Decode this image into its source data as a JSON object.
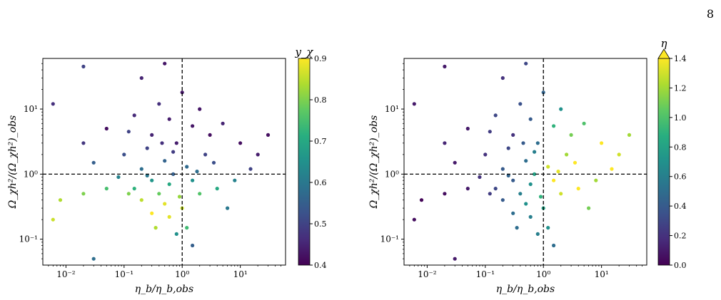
{
  "page_number": "8",
  "chart_data": [
    {
      "type": "scatter",
      "xlabel": "η_b/η_b,obs",
      "ylabel": "Ω_χh²/(Ω_χh²)_obs",
      "x_scale": "log",
      "y_scale": "log",
      "xlim": [
        0.004,
        60
      ],
      "ylim": [
        0.04,
        60
      ],
      "x_ticks": [
        {
          "value": 0.01,
          "label": "10⁻²"
        },
        {
          "value": 0.1,
          "label": "10⁻¹"
        },
        {
          "value": 1,
          "label": "10⁰"
        },
        {
          "value": 10,
          "label": "10¹"
        }
      ],
      "y_ticks": [
        {
          "value": 0.1,
          "label": "10⁻¹"
        },
        {
          "value": 1,
          "label": "10⁰"
        },
        {
          "value": 10,
          "label": "10¹"
        }
      ],
      "reference_lines": {
        "x": 1,
        "y": 1,
        "style": "dashed"
      },
      "colorbar": {
        "label": "y_χ",
        "min": 0.4,
        "max": 0.9,
        "ticks": [
          {
            "value": 0.4,
            "label": "0.4"
          },
          {
            "value": 0.5,
            "label": "0.5"
          },
          {
            "value": 0.6,
            "label": "0.6"
          },
          {
            "value": 0.7,
            "label": "0.7"
          },
          {
            "value": 0.8,
            "label": "0.8"
          },
          {
            "value": 0.9,
            "label": "0.9"
          }
        ],
        "colormap": "viridis",
        "extend_max": false
      },
      "points": [
        [
          0.05,
          5.0,
          0.42
        ],
        [
          0.3,
          4.0,
          0.45
        ],
        [
          0.8,
          3.0,
          0.44
        ],
        [
          1.5,
          5.5,
          0.43
        ],
        [
          3.0,
          4.0,
          0.42
        ],
        [
          0.15,
          8.0,
          0.46
        ],
        [
          0.6,
          7.0,
          0.44
        ],
        [
          2.0,
          10.0,
          0.43
        ],
        [
          5.0,
          6.0,
          0.45
        ],
        [
          0.02,
          3.0,
          0.48
        ],
        [
          0.4,
          12.0,
          0.47
        ],
        [
          1.0,
          18.0,
          0.43
        ],
        [
          0.25,
          2.5,
          0.5
        ],
        [
          0.1,
          2.0,
          0.52
        ],
        [
          0.7,
          2.2,
          0.49
        ],
        [
          2.5,
          2.0,
          0.5
        ],
        [
          0.03,
          1.5,
          0.55
        ],
        [
          0.5,
          1.6,
          0.56
        ],
        [
          0.2,
          1.2,
          0.58
        ],
        [
          1.2,
          1.3,
          0.57
        ],
        [
          0.08,
          0.9,
          0.62
        ],
        [
          0.3,
          0.8,
          0.66
        ],
        [
          0.6,
          0.7,
          0.7
        ],
        [
          1.5,
          0.8,
          0.65
        ],
        [
          0.15,
          0.6,
          0.72
        ],
        [
          0.4,
          0.5,
          0.78
        ],
        [
          0.9,
          0.45,
          0.82
        ],
        [
          0.2,
          0.4,
          0.85
        ],
        [
          0.5,
          0.35,
          0.88
        ],
        [
          1.0,
          0.3,
          0.86
        ],
        [
          0.3,
          0.25,
          0.9
        ],
        [
          0.6,
          0.22,
          0.88
        ],
        [
          0.12,
          0.5,
          0.8
        ],
        [
          0.05,
          0.6,
          0.75
        ],
        [
          0.02,
          0.5,
          0.8
        ],
        [
          0.008,
          0.4,
          0.84
        ],
        [
          2.0,
          0.5,
          0.76
        ],
        [
          4.0,
          0.6,
          0.7
        ],
        [
          8.0,
          0.8,
          0.62
        ],
        [
          1.2,
          0.15,
          0.74
        ],
        [
          0.8,
          0.12,
          0.65
        ],
        [
          1.5,
          0.08,
          0.55
        ],
        [
          0.03,
          0.05,
          0.58
        ],
        [
          0.006,
          0.2,
          0.86
        ],
        [
          0.006,
          12.0,
          0.47
        ],
        [
          0.2,
          30.0,
          0.45
        ],
        [
          0.02,
          45.0,
          0.5
        ],
        [
          0.5,
          50.0,
          0.43
        ],
        [
          10.0,
          3.0,
          0.42
        ],
        [
          20.0,
          2.0,
          0.44
        ],
        [
          30.0,
          4.0,
          0.42
        ],
        [
          15.0,
          1.2,
          0.5
        ],
        [
          0.7,
          1.0,
          0.55
        ],
        [
          0.25,
          0.95,
          0.6
        ],
        [
          1.8,
          1.1,
          0.58
        ],
        [
          0.45,
          3.0,
          0.47
        ],
        [
          0.12,
          4.5,
          0.5
        ],
        [
          3.5,
          1.5,
          0.52
        ],
        [
          6.0,
          0.3,
          0.6
        ],
        [
          0.35,
          0.15,
          0.84
        ]
      ]
    },
    {
      "type": "scatter",
      "xlabel": "η_b/η_b,obs",
      "ylabel": "Ω_χh²/(Ω_χh²)_obs",
      "x_scale": "log",
      "y_scale": "log",
      "xlim": [
        0.004,
        60
      ],
      "ylim": [
        0.04,
        60
      ],
      "x_ticks": [
        {
          "value": 0.01,
          "label": "10⁻²"
        },
        {
          "value": 0.1,
          "label": "10⁻¹"
        },
        {
          "value": 1,
          "label": "10⁰"
        },
        {
          "value": 10,
          "label": "10¹"
        }
      ],
      "y_ticks": [
        {
          "value": 0.1,
          "label": "10⁻¹"
        },
        {
          "value": 1,
          "label": "10⁰"
        },
        {
          "value": 10,
          "label": "10¹"
        }
      ],
      "reference_lines": {
        "x": 1,
        "y": 1,
        "style": "dashed"
      },
      "colorbar": {
        "label": "η",
        "min": 0.0,
        "max": 1.4,
        "ticks": [
          {
            "value": 0.0,
            "label": "0.0"
          },
          {
            "value": 0.2,
            "label": "0.2"
          },
          {
            "value": 0.4,
            "label": "0.4"
          },
          {
            "value": 0.6,
            "label": "0.6"
          },
          {
            "value": 0.8,
            "label": "0.8"
          },
          {
            "value": 1.0,
            "label": "1.0"
          },
          {
            "value": 1.2,
            "label": "1.2"
          },
          {
            "value": 1.4,
            "label": "1.4"
          }
        ],
        "colormap": "viridis",
        "extend_max": true
      },
      "points": [
        [
          0.05,
          5.0,
          0.1
        ],
        [
          0.3,
          4.0,
          0.2
        ],
        [
          0.8,
          3.0,
          0.5
        ],
        [
          1.5,
          5.5,
          0.9
        ],
        [
          3.0,
          4.0,
          1.1
        ],
        [
          0.15,
          8.0,
          0.3
        ],
        [
          0.6,
          7.0,
          0.4
        ],
        [
          2.0,
          10.0,
          0.7
        ],
        [
          5.0,
          6.0,
          1.0
        ],
        [
          0.02,
          3.0,
          0.15
        ],
        [
          0.4,
          12.0,
          0.35
        ],
        [
          1.0,
          18.0,
          0.45
        ],
        [
          0.25,
          2.5,
          0.3
        ],
        [
          0.1,
          2.0,
          0.2
        ],
        [
          0.7,
          2.2,
          0.6
        ],
        [
          2.5,
          2.0,
          1.2
        ],
        [
          0.03,
          1.5,
          0.1
        ],
        [
          0.5,
          1.6,
          0.5
        ],
        [
          0.2,
          1.2,
          0.4
        ],
        [
          1.2,
          1.3,
          1.3
        ],
        [
          0.08,
          0.9,
          0.2
        ],
        [
          0.3,
          0.8,
          0.4
        ],
        [
          0.6,
          0.7,
          0.7
        ],
        [
          1.5,
          0.8,
          1.4
        ],
        [
          0.15,
          0.6,
          0.3
        ],
        [
          0.4,
          0.5,
          0.6
        ],
        [
          0.9,
          0.45,
          0.9
        ],
        [
          0.2,
          0.4,
          0.4
        ],
        [
          0.5,
          0.35,
          0.7
        ],
        [
          1.0,
          0.3,
          0.8
        ],
        [
          0.3,
          0.25,
          0.5
        ],
        [
          0.6,
          0.22,
          0.6
        ],
        [
          0.12,
          0.5,
          0.25
        ],
        [
          0.05,
          0.6,
          0.1
        ],
        [
          0.02,
          0.5,
          0.05
        ],
        [
          0.008,
          0.4,
          0.02
        ],
        [
          2.0,
          0.5,
          1.3
        ],
        [
          4.0,
          0.6,
          1.4
        ],
        [
          8.0,
          0.8,
          1.2
        ],
        [
          1.2,
          0.15,
          0.7
        ],
        [
          0.8,
          0.12,
          0.6
        ],
        [
          1.5,
          0.08,
          0.5
        ],
        [
          0.03,
          0.05,
          0.1
        ],
        [
          0.006,
          0.2,
          0.05
        ],
        [
          0.006,
          12.0,
          0.1
        ],
        [
          0.2,
          30.0,
          0.2
        ],
        [
          0.02,
          45.0,
          0.1
        ],
        [
          0.5,
          50.0,
          0.3
        ],
        [
          10.0,
          3.0,
          1.4
        ],
        [
          20.0,
          2.0,
          1.3
        ],
        [
          30.0,
          4.0,
          1.2
        ],
        [
          15.0,
          1.2,
          1.4
        ],
        [
          0.7,
          1.0,
          0.8
        ],
        [
          0.25,
          0.95,
          0.45
        ],
        [
          1.8,
          1.1,
          1.35
        ],
        [
          0.45,
          3.0,
          0.4
        ],
        [
          0.12,
          4.5,
          0.25
        ],
        [
          3.5,
          1.5,
          1.4
        ],
        [
          6.0,
          0.3,
          1.1
        ],
        [
          0.35,
          0.15,
          0.5
        ]
      ]
    }
  ]
}
